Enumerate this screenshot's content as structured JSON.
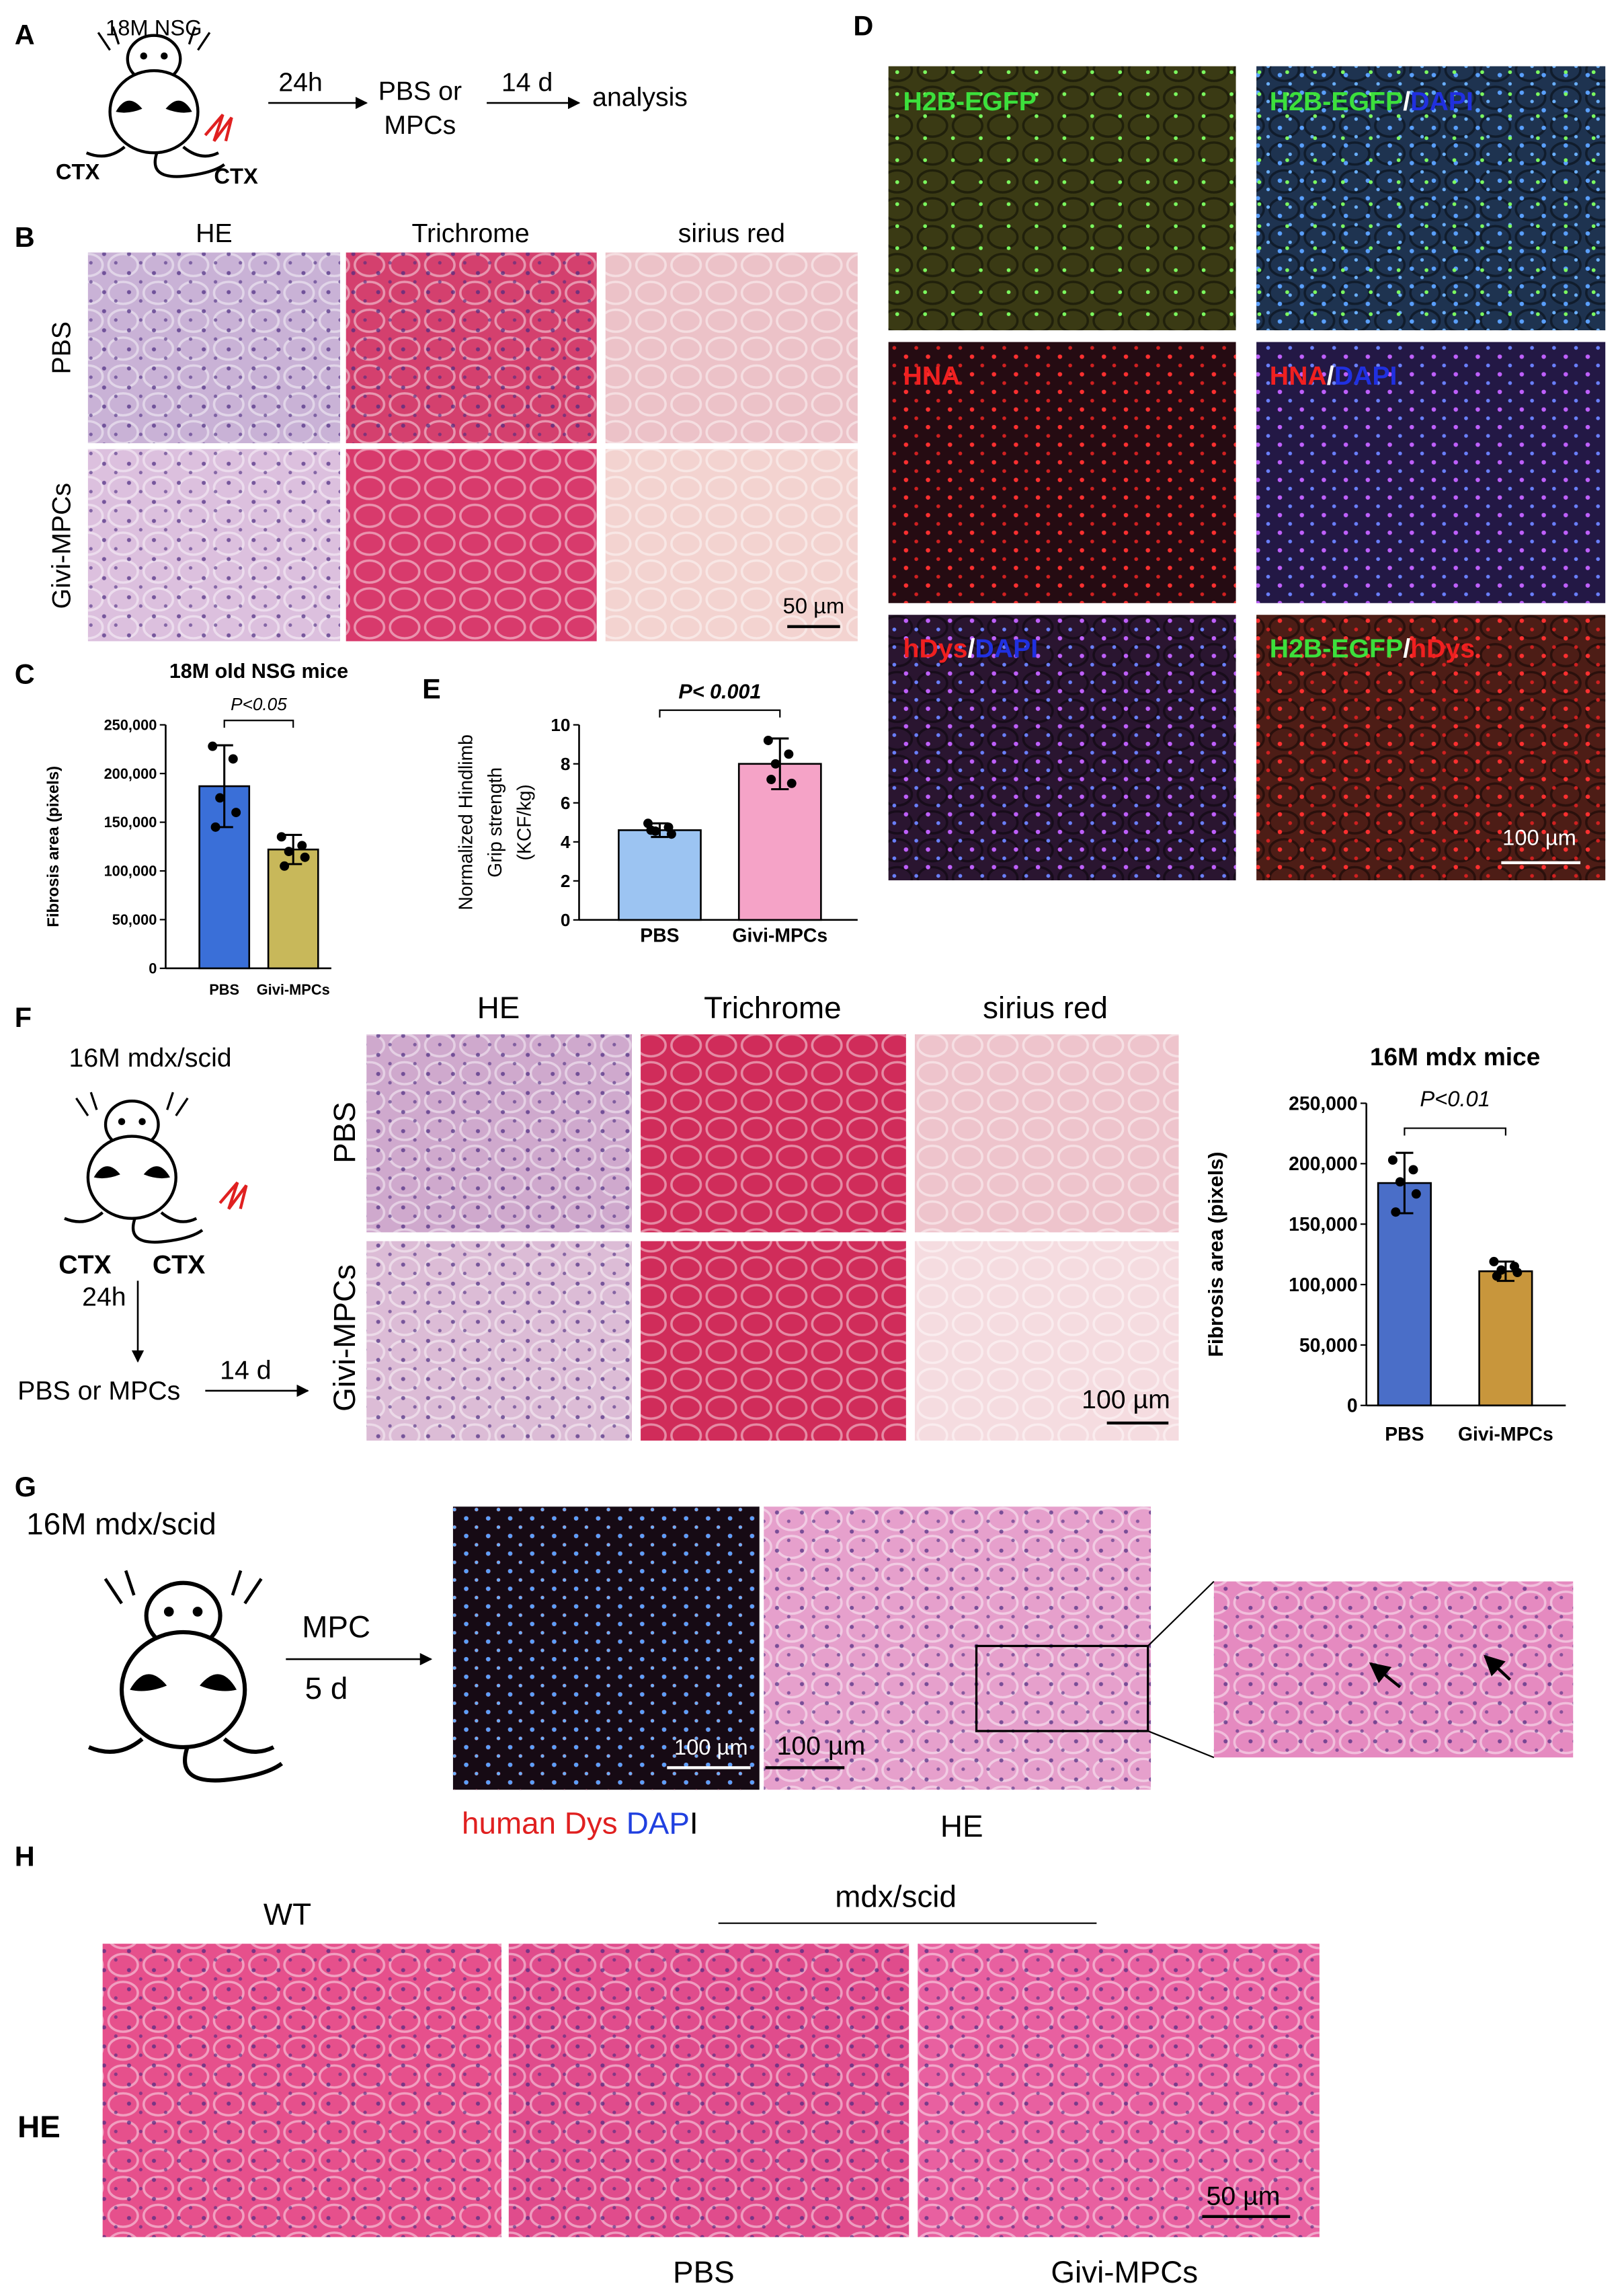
{
  "panel_labels": [
    "A",
    "B",
    "C",
    "D",
    "E",
    "F",
    "G",
    "H"
  ],
  "panel_a": {
    "mouse": "18M NSG",
    "ctx_left": "CTX",
    "ctx_right": "CTX",
    "wait": "24h",
    "treatment": [
      "PBS or",
      "MPCs"
    ],
    "period": "14 d",
    "outcome": "analysis"
  },
  "panel_b": {
    "columns": [
      "HE",
      "Trichrome",
      "sirius red"
    ],
    "rows": [
      "PBS",
      "Givi-MPCs"
    ],
    "scale_bar": "50 µm"
  },
  "panel_d": {
    "images": [
      [
        "H2B-EGFP"
      ],
      [
        "H2B-EGFP",
        "/",
        "DAPI"
      ],
      [
        "HNA"
      ],
      [
        "HNA",
        "/",
        "DAPI"
      ],
      [
        "hDys",
        "/",
        "DAPI"
      ],
      [
        "H2B-EGFP",
        "/",
        "hDys"
      ]
    ],
    "scale_bar": "100 µm"
  },
  "panel_f": {
    "mouse": "16M mdx/scid",
    "ctx_left": "CTX",
    "ctx_right": "CTX",
    "wait": "24h",
    "treatment": "PBS or MPCs",
    "period": "14 d",
    "columns": [
      "HE",
      "Trichrome",
      "sirius red"
    ],
    "rows": [
      "PBS",
      "Givi-MPCs"
    ],
    "scale_bar": "100 µm"
  },
  "panel_g": {
    "mouse": "16M mdx/scid",
    "treatment": "MPC",
    "period": "5 d",
    "scale_bars": [
      "100 µm",
      "100 µm"
    ],
    "stain": [
      "human Dys",
      "DAP",
      "I"
    ],
    "he": "HE"
  },
  "panel_h": {
    "row": "HE",
    "columns": [
      "WT",
      "PBS",
      "Givi-MPCs"
    ],
    "group": "mdx/scid",
    "scale_bar": "50 µm"
  },
  "chart_data": [
    {
      "type": "bar",
      "title": "18M old NSG mice",
      "annotation": "P<0.05",
      "ylabel": [
        "Fibrosis area (pixels)"
      ],
      "categories": [
        "PBS",
        "Givi-MPCs"
      ],
      "values": [
        187000,
        122000
      ],
      "errors": [
        42000,
        15000
      ],
      "points": [
        [
          228000,
          215000,
          175000,
          160000,
          145000
        ],
        [
          135000,
          126000,
          120000,
          114000,
          105000
        ]
      ],
      "colors": [
        "#3a6fd8",
        "#c8b85a"
      ],
      "ylim": [
        0,
        250000
      ],
      "yticks": [
        0,
        {
          "value": 50000,
          "label": "50,000"
        },
        {
          "value": 100000,
          "label": "100,000"
        },
        {
          "value": 150000,
          "label": "150,000"
        },
        {
          "value": 200000,
          "label": "200,000"
        },
        {
          "value": 250000,
          "label": "250,000"
        }
      ]
    },
    {
      "type": "bar",
      "annotation": "P< 0.001",
      "ylabel": [
        "Normalized Hindlimb",
        "Grip strength",
        "(KCF/kg)"
      ],
      "categories": [
        "PBS",
        "Givi-MPCs"
      ],
      "values": [
        4.6,
        8.0
      ],
      "errors": [
        0.35,
        1.3
      ],
      "points": [
        [
          4.95,
          4.75,
          4.55,
          4.4,
          4.6
        ],
        [
          9.2,
          8.5,
          8.0,
          7.0,
          7.2
        ]
      ],
      "colors": [
        "#9cc4f2",
        "#f5a3c7"
      ],
      "ylim": [
        0,
        10
      ],
      "yticks": [
        0,
        2,
        4,
        6,
        8,
        10
      ]
    },
    {
      "type": "bar",
      "title": "16M mdx mice",
      "annotation": "P<0.01",
      "ylabel": [
        "Fibrosis area (pixels)"
      ],
      "categories": [
        "PBS",
        "Givi-MPCs"
      ],
      "values": [
        184000,
        111000
      ],
      "errors": [
        25000,
        8000
      ],
      "points": [
        [
          203000,
          195000,
          185000,
          175000,
          160000
        ],
        [
          119000,
          115000,
          112000,
          110000,
          107000
        ]
      ],
      "colors": [
        "#4a6ec8",
        "#c8963c"
      ],
      "ylim": [
        0,
        250000
      ],
      "yticks": [
        0,
        {
          "value": 50000,
          "label": "50,000"
        },
        {
          "value": 100000,
          "label": "100,000"
        },
        {
          "value": 150000,
          "label": "150,000"
        },
        {
          "value": 200000,
          "label": "200,000"
        },
        {
          "value": 250000,
          "label": "250,000"
        }
      ]
    }
  ]
}
